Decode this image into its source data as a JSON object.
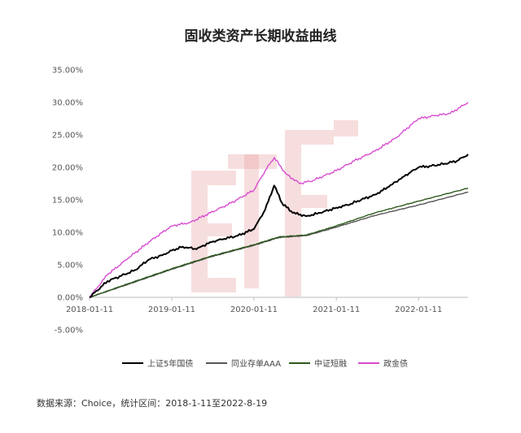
{
  "title": "固收类资产长期收益曲线",
  "source_note": "数据来源：Choice，统计区间：2018-1-11至2022-8-19",
  "colors": {
    "shanghai_5y": "#000000",
    "interbank_cd": "#555555",
    "short_term": "#2e5a1c",
    "policy_bond": "#d94bd0",
    "watermark": "#e8a0a0",
    "grid": "#e6e6e6"
  },
  "chart_data": {
    "type": "line",
    "title": "固收类资产长期收益曲线",
    "xlabel": "",
    "ylabel": "",
    "x_range": [
      "2018-01-11",
      "2022-08-19"
    ],
    "x_ticks": [
      "2018-01-11",
      "2019-01-11",
      "2020-01-11",
      "2021-01-11",
      "2022-01-11"
    ],
    "y_ticks": [
      "35.00%",
      "30.00%",
      "25.00%",
      "20.00%",
      "15.00%",
      "10.00%",
      "5.00%",
      "0.00%",
      "-5.00%"
    ],
    "ylim": [
      -5,
      35
    ],
    "y_unit": "%",
    "grid": false,
    "legend_position": "bottom",
    "series": [
      {
        "name": "上证5年国债",
        "color_key": "shanghai_5y",
        "points": [
          [
            "2018-01-11",
            0.0
          ],
          [
            "2018-04-01",
            2.5
          ],
          [
            "2018-06-01",
            3.3
          ],
          [
            "2018-08-01",
            4.2
          ],
          [
            "2018-10-01",
            5.8
          ],
          [
            "2018-12-01",
            6.5
          ],
          [
            "2019-01-11",
            7.2
          ],
          [
            "2019-03-01",
            7.8
          ],
          [
            "2019-05-01",
            7.4
          ],
          [
            "2019-07-01",
            8.5
          ],
          [
            "2019-09-01",
            9.0
          ],
          [
            "2019-11-01",
            9.5
          ],
          [
            "2020-01-11",
            10.5
          ],
          [
            "2020-03-01",
            13.5
          ],
          [
            "2020-04-10",
            17.2
          ],
          [
            "2020-05-15",
            14.5
          ],
          [
            "2020-07-01",
            13.0
          ],
          [
            "2020-09-01",
            12.5
          ],
          [
            "2020-11-01",
            13.0
          ],
          [
            "2021-01-11",
            13.8
          ],
          [
            "2021-03-01",
            14.2
          ],
          [
            "2021-05-01",
            15.0
          ],
          [
            "2021-07-01",
            15.8
          ],
          [
            "2021-09-01",
            17.0
          ],
          [
            "2021-11-01",
            18.5
          ],
          [
            "2022-01-11",
            20.0
          ],
          [
            "2022-03-01",
            20.2
          ],
          [
            "2022-05-01",
            20.5
          ],
          [
            "2022-07-01",
            21.0
          ],
          [
            "2022-08-19",
            22.0
          ]
        ]
      },
      {
        "name": "同业存单AAA",
        "color_key": "interbank_cd",
        "points": [
          [
            "2018-01-11",
            0.0
          ],
          [
            "2018-07-01",
            2.0
          ],
          [
            "2019-01-11",
            4.3
          ],
          [
            "2019-07-01",
            6.2
          ],
          [
            "2020-01-11",
            8.0
          ],
          [
            "2020-05-01",
            9.2
          ],
          [
            "2020-09-01",
            9.5
          ],
          [
            "2021-01-11",
            10.8
          ],
          [
            "2021-07-01",
            12.6
          ],
          [
            "2022-01-11",
            14.2
          ],
          [
            "2022-08-19",
            16.2
          ]
        ]
      },
      {
        "name": "中证短融",
        "color_key": "short_term",
        "points": [
          [
            "2018-01-11",
            0.0
          ],
          [
            "2018-07-01",
            2.1
          ],
          [
            "2019-01-11",
            4.4
          ],
          [
            "2019-07-01",
            6.3
          ],
          [
            "2020-01-11",
            8.1
          ],
          [
            "2020-05-01",
            9.3
          ],
          [
            "2020-09-01",
            9.6
          ],
          [
            "2021-01-11",
            11.0
          ],
          [
            "2021-07-01",
            13.0
          ],
          [
            "2022-01-11",
            14.8
          ],
          [
            "2022-08-19",
            16.8
          ]
        ]
      },
      {
        "name": "政金债",
        "color_key": "policy_bond",
        "points": [
          [
            "2018-01-11",
            0.0
          ],
          [
            "2018-04-01",
            3.5
          ],
          [
            "2018-07-01",
            6.0
          ],
          [
            "2018-10-01",
            8.5
          ],
          [
            "2019-01-11",
            11.0
          ],
          [
            "2019-04-01",
            11.5
          ],
          [
            "2019-07-01",
            13.0
          ],
          [
            "2019-10-01",
            14.5
          ],
          [
            "2020-01-11",
            16.5
          ],
          [
            "2020-03-01",
            19.5
          ],
          [
            "2020-04-10",
            21.5
          ],
          [
            "2020-06-01",
            19.0
          ],
          [
            "2020-08-01",
            17.5
          ],
          [
            "2020-10-01",
            18.0
          ],
          [
            "2021-01-11",
            19.5
          ],
          [
            "2021-04-01",
            21.0
          ],
          [
            "2021-07-01",
            22.5
          ],
          [
            "2021-10-01",
            24.5
          ],
          [
            "2022-01-11",
            27.5
          ],
          [
            "2022-04-01",
            28.0
          ],
          [
            "2022-06-01",
            28.3
          ],
          [
            "2022-08-19",
            30.0
          ]
        ]
      }
    ]
  }
}
